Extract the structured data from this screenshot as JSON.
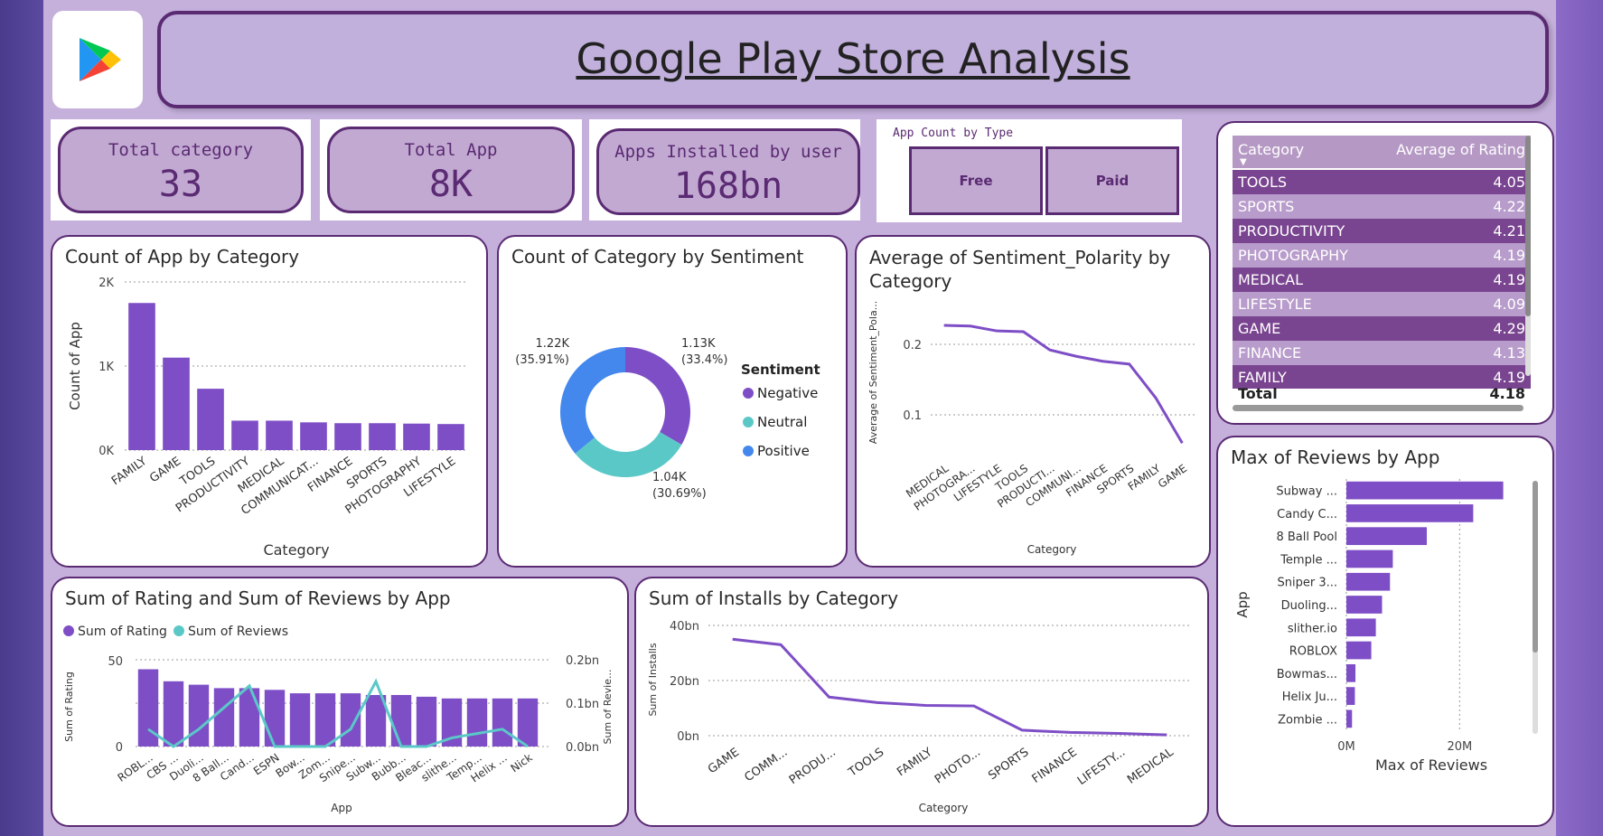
{
  "header": {
    "title": "Google Play Store Analysis",
    "logo_icon": "google-play-icon"
  },
  "kpis": [
    {
      "label": "Total category",
      "value": "33"
    },
    {
      "label": "Total App",
      "value": "8K"
    },
    {
      "label": "Apps Installed by user",
      "value": "168bn"
    }
  ],
  "type_slicer": {
    "title": "App Count by Type",
    "options": [
      "Free",
      "Paid"
    ]
  },
  "rating_table": {
    "headers": [
      "Category",
      "Average of Rating"
    ],
    "rows": [
      [
        "TOOLS",
        "4.05"
      ],
      [
        "SPORTS",
        "4.22"
      ],
      [
        "PRODUCTIVITY",
        "4.21"
      ],
      [
        "PHOTOGRAPHY",
        "4.19"
      ],
      [
        "MEDICAL",
        "4.19"
      ],
      [
        "LIFESTYLE",
        "4.09"
      ],
      [
        "GAME",
        "4.29"
      ],
      [
        "FINANCE",
        "4.13"
      ],
      [
        "FAMILY",
        "4.19"
      ]
    ],
    "total_label": "Total",
    "total_value": "4.18"
  },
  "colors": {
    "purple": "#7e4ec6",
    "teal": "#5bc8c8",
    "blue": "#4488ee",
    "dark": "#5a2a72",
    "panel_border": "#5a2a72"
  },
  "chart_data": [
    {
      "id": "count-by-category",
      "type": "bar",
      "title": "Count of App by Category",
      "xlabel": "Category",
      "ylabel": "Count of App",
      "categories": [
        "FAMILY",
        "GAME",
        "TOOLS",
        "PRODUCTIVITY",
        "MEDICAL",
        "COMMUNICAT...",
        "FINANCE",
        "SPORTS",
        "PHOTOGRAPHY",
        "LIFESTYLE"
      ],
      "values": [
        1750,
        1100,
        730,
        350,
        350,
        330,
        320,
        320,
        315,
        310
      ],
      "ylim": [
        0,
        2000
      ],
      "yticks": [
        "0K",
        "1K",
        "2K"
      ]
    },
    {
      "id": "category-by-sentiment",
      "type": "pie",
      "title": "Count of Category by Sentiment",
      "legend_title": "Sentiment",
      "slices": [
        {
          "name": "Negative",
          "value": 1.13,
          "label": "1.13K",
          "pct": "(33.4%)"
        },
        {
          "name": "Neutral",
          "value": 1.04,
          "label": "1.04K",
          "pct": "(30.69%)"
        },
        {
          "name": "Positive",
          "value": 1.22,
          "label": "1.22K",
          "pct": "(35.91%)"
        }
      ]
    },
    {
      "id": "sentiment-polarity",
      "type": "line",
      "title": "Average of Sentiment_Polarity by Category",
      "xlabel": "Category",
      "ylabel": "Average of Sentiment_Pola...",
      "categories": [
        "MEDICAL",
        "PHOTOGRA...",
        "LIFESTYLE",
        "TOOLS",
        "PRODUCTI...",
        "COMMUNI...",
        "FINANCE",
        "SPORTS",
        "FAMILY",
        "GAME"
      ],
      "values": [
        0.227,
        0.226,
        0.219,
        0.218,
        0.192,
        0.183,
        0.176,
        0.172,
        0.124,
        0.06
      ],
      "ylim": [
        0.05,
        0.25
      ],
      "yticks": [
        "0.1",
        "0.2"
      ]
    },
    {
      "id": "rating-reviews",
      "type": "bar",
      "title": "Sum of Rating and Sum of Reviews by App",
      "xlabel": "App",
      "ylabel": "Sum of Rating",
      "y2label": "Sum of Revie...",
      "categories": [
        "ROBL...",
        "CBS ...",
        "Duoli...",
        "8 Ball...",
        "Cand...",
        "ESPN",
        "Bow...",
        "Zom...",
        "Snipe...",
        "Subw...",
        "Bubb...",
        "Bleac...",
        "slithe...",
        "Temp...",
        "Helix ...",
        "Nick"
      ],
      "series": [
        {
          "name": "Sum of Rating",
          "values": [
            45,
            38,
            36,
            34,
            34,
            33,
            31,
            31,
            31,
            30,
            30,
            29,
            28,
            28,
            28,
            28
          ]
        },
        {
          "name": "Sum of Reviews",
          "values": [
            0.04,
            0.0,
            0.04,
            0.09,
            0.14,
            0.0,
            0.0,
            0.0,
            0.04,
            0.15,
            0.0,
            0.0,
            0.02,
            0.03,
            0.04,
            0.0
          ]
        }
      ],
      "ylim": [
        0,
        60
      ],
      "yticks": [
        "0",
        "50"
      ],
      "y2ticks": [
        "0.0bn",
        "0.1bn",
        "0.2bn"
      ]
    },
    {
      "id": "installs-by-category",
      "type": "line",
      "title": "Sum of Installs by Category",
      "xlabel": "Category",
      "ylabel": "Sum of Installs",
      "categories": [
        "GAME",
        "COMM...",
        "PRODU...",
        "TOOLS",
        "FAMILY",
        "PHOTO...",
        "SPORTS",
        "FINANCE",
        "LIFESTY...",
        "MEDICAL"
      ],
      "values": [
        35,
        33,
        14,
        12,
        11,
        10.8,
        2,
        1.2,
        0.8,
        0.3
      ],
      "ylim": [
        0,
        40
      ],
      "yticks": [
        "0bn",
        "20bn",
        "40bn"
      ]
    },
    {
      "id": "reviews-by-app",
      "type": "bar",
      "title": "Max of Reviews by App",
      "xlabel": "Max of Reviews",
      "ylabel": "App",
      "categories": [
        "Subway ...",
        "Candy C...",
        "8 Ball Pool",
        "Temple ...",
        "Sniper 3...",
        "Duoling...",
        "slither.io",
        "ROBLOX",
        "Bowmas...",
        "Helix Ju...",
        "Zombie ..."
      ],
      "values": [
        27.7,
        22.4,
        14.2,
        8.2,
        7.7,
        6.3,
        5.2,
        4.4,
        1.6,
        1.5,
        1.0
      ],
      "xlim": [
        0,
        30
      ],
      "xticks": [
        "0M",
        "20M"
      ]
    }
  ]
}
